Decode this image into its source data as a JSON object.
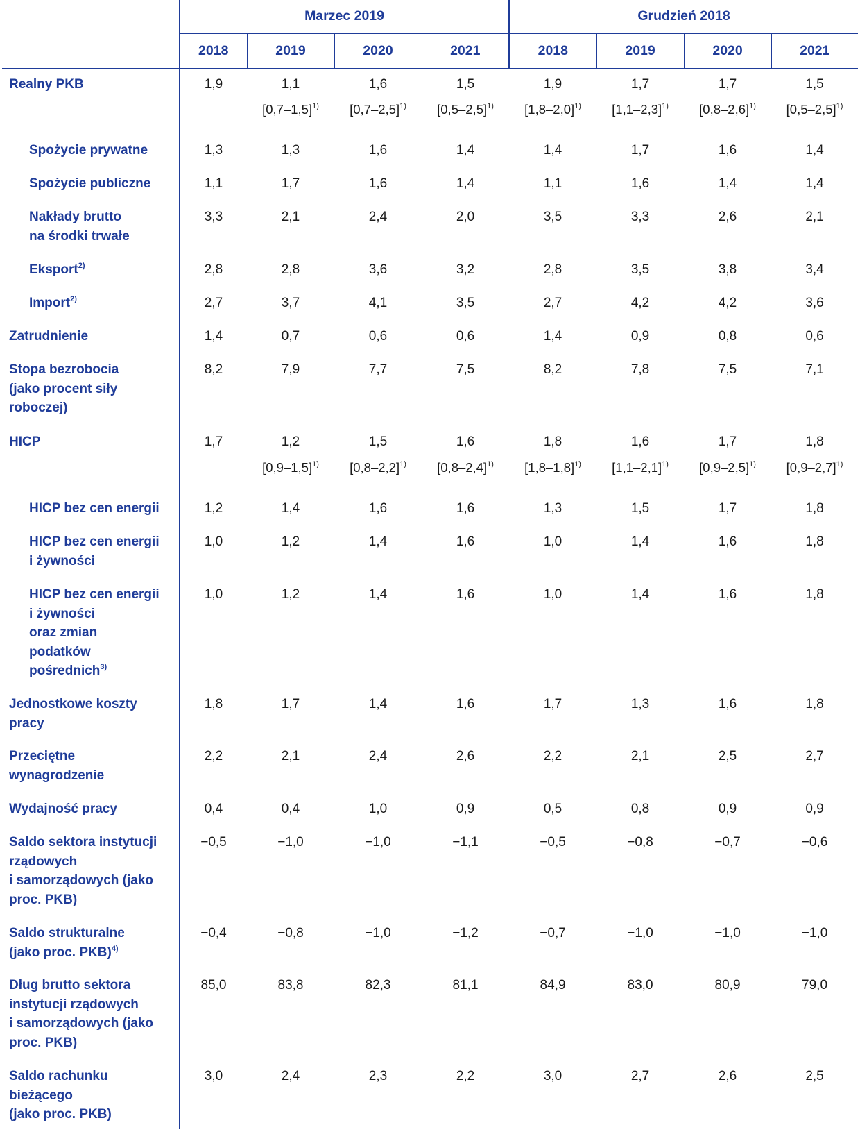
{
  "header": {
    "groups": [
      "Marzec 2019",
      "Grudzień 2018"
    ],
    "years": [
      "2018",
      "2019",
      "2020",
      "2021",
      "2018",
      "2019",
      "2020",
      "2021"
    ]
  },
  "rows": [
    {
      "label": "Realny PKB",
      "level": 0,
      "values": [
        "1,9",
        "1,1",
        "1,6",
        "1,5",
        "1,9",
        "1,7",
        "1,7",
        "1,5"
      ]
    },
    {
      "label": "",
      "level": 0,
      "range": true,
      "values": [
        "",
        "[0,7–1,5]",
        "[0,7–2,5]",
        "[0,5–2,5]",
        "[1,8–2,0]",
        "[1,1–2,3]",
        "[0,8–2,6]",
        "[0,5–2,5]"
      ],
      "note": "1)"
    },
    {
      "label": "Spożycie prywatne",
      "level": 1,
      "values": [
        "1,3",
        "1,3",
        "1,6",
        "1,4",
        "1,4",
        "1,7",
        "1,6",
        "1,4"
      ]
    },
    {
      "label": "Spożycie publiczne",
      "level": 1,
      "values": [
        "1,1",
        "1,7",
        "1,6",
        "1,4",
        "1,1",
        "1,6",
        "1,4",
        "1,4"
      ]
    },
    {
      "label": "Nakłady brutto\nna środki trwałe",
      "level": 1,
      "values": [
        "3,3",
        "2,1",
        "2,4",
        "2,0",
        "3,5",
        "3,3",
        "2,6",
        "2,1"
      ]
    },
    {
      "label": "Eksport",
      "note": "2)",
      "level": 1,
      "values": [
        "2,8",
        "2,8",
        "3,6",
        "3,2",
        "2,8",
        "3,5",
        "3,8",
        "3,4"
      ]
    },
    {
      "label": "Import",
      "note": "2)",
      "level": 1,
      "values": [
        "2,7",
        "3,7",
        "4,1",
        "3,5",
        "2,7",
        "4,2",
        "4,2",
        "3,6"
      ]
    },
    {
      "label": "Zatrudnienie",
      "level": 0,
      "values": [
        "1,4",
        "0,7",
        "0,6",
        "0,6",
        "1,4",
        "0,9",
        "0,8",
        "0,6"
      ]
    },
    {
      "label": "Stopa bezrobocia\n(jako procent siły\nroboczej)",
      "level": 0,
      "values": [
        "8,2",
        "7,9",
        "7,7",
        "7,5",
        "8,2",
        "7,8",
        "7,5",
        "7,1"
      ]
    },
    {
      "label": "HICP",
      "level": 0,
      "values": [
        "1,7",
        "1,2",
        "1,5",
        "1,6",
        "1,8",
        "1,6",
        "1,7",
        "1,8"
      ]
    },
    {
      "label": "",
      "level": 0,
      "range": true,
      "values": [
        "",
        "[0,9–1,5]",
        "[0,8–2,2]",
        "[0,8–2,4]",
        "[1,8–1,8]",
        "[1,1–2,1]",
        "[0,9–2,5]",
        "[0,9–2,7]"
      ],
      "note": "1)"
    },
    {
      "label": "HICP bez cen energii",
      "level": 1,
      "values": [
        "1,2",
        "1,4",
        "1,6",
        "1,6",
        "1,3",
        "1,5",
        "1,7",
        "1,8"
      ]
    },
    {
      "label": "HICP bez cen energii\ni żywności",
      "level": 1,
      "values": [
        "1,0",
        "1,2",
        "1,4",
        "1,6",
        "1,0",
        "1,4",
        "1,6",
        "1,8"
      ]
    },
    {
      "label": "HICP bez cen energii\ni żywności\noraz zmian\npodatków\npośrednich",
      "note": "3)",
      "level": 1,
      "values": [
        "1,0",
        "1,2",
        "1,4",
        "1,6",
        "1,0",
        "1,4",
        "1,6",
        "1,8"
      ]
    },
    {
      "label": "Jednostkowe koszty\npracy",
      "level": 0,
      "values": [
        "1,8",
        "1,7",
        "1,4",
        "1,6",
        "1,7",
        "1,3",
        "1,6",
        "1,8"
      ]
    },
    {
      "label": "Przeciętne\nwynagrodzenie",
      "level": 0,
      "values": [
        "2,2",
        "2,1",
        "2,4",
        "2,6",
        "2,2",
        "2,1",
        "2,5",
        "2,7"
      ]
    },
    {
      "label": "Wydajność pracy",
      "level": 0,
      "values": [
        "0,4",
        "0,4",
        "1,0",
        "0,9",
        "0,5",
        "0,8",
        "0,9",
        "0,9"
      ]
    },
    {
      "label": "Saldo sektora instytucji\nrządowych\ni samorządowych (jako\nproc. PKB)",
      "level": 0,
      "values": [
        "−0,5",
        "−1,0",
        "−1,0",
        "−1,1",
        "−0,5",
        "−0,8",
        "−0,7",
        "−0,6"
      ]
    },
    {
      "label": "Saldo strukturalne\n(jako proc. PKB)",
      "note": "4)",
      "level": 0,
      "values": [
        "−0,4",
        "−0,8",
        "−1,0",
        "−1,2",
        "−0,7",
        "−1,0",
        "−1,0",
        "−1,0"
      ]
    },
    {
      "label": "Dług brutto sektora\ninstytucji rządowych\ni samorządowych (jako\nproc. PKB)",
      "level": 0,
      "values": [
        "85,0",
        "83,8",
        "82,3",
        "81,1",
        "84,9",
        "83,0",
        "80,9",
        "79,0"
      ]
    },
    {
      "label": "Saldo rachunku\nbieżącego\n(jako proc. PKB)",
      "level": 0,
      "values": [
        "3,0",
        "2,4",
        "2,3",
        "2,2",
        "3,0",
        "2,7",
        "2,6",
        "2,5"
      ]
    }
  ],
  "colors": {
    "label": "#1f3c99",
    "value": "#1a1a1a",
    "rule": "#1f3c99"
  }
}
